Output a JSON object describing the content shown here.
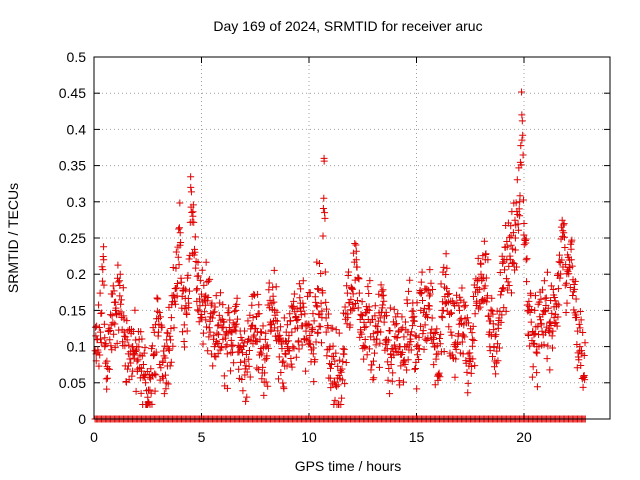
{
  "chart_data": {
    "type": "scatter",
    "title": "Day 169 of 2024, SRMTID for receiver aruc",
    "xlabel": "GPS time / hours",
    "ylabel": "SRMTID / TECUs",
    "xlim": [
      0,
      24
    ],
    "ylim": [
      0,
      0.5
    ],
    "xticks": [
      0,
      5,
      10,
      15,
      20
    ],
    "yticks": [
      0,
      0.05,
      0.1,
      0.15,
      0.2,
      0.25,
      0.3,
      0.35,
      0.4,
      0.45,
      0.5
    ],
    "xtick_labels": [
      "0",
      "5",
      "10",
      "15",
      "20"
    ],
    "ytick_labels": [
      "0",
      "0.05",
      "0.1",
      "0.15",
      "0.2",
      "0.25",
      "0.3",
      "0.35",
      "0.4",
      "0.45",
      "0.5"
    ],
    "grid": true,
    "marker": "+",
    "marker_color": "#e00000",
    "series": [
      {
        "name": "SRMTID",
        "x": [
          0.1,
          0.3,
          0.45,
          0.5,
          0.6,
          0.8,
          1.0,
          1.2,
          1.4,
          1.6,
          1.8,
          2.0,
          2.2,
          2.4,
          2.5,
          2.6,
          2.7,
          2.8,
          3.0,
          3.2,
          3.4,
          3.6,
          3.8,
          4.0,
          4.2,
          4.4,
          4.5,
          4.6,
          4.8,
          5.0,
          5.2,
          5.4,
          5.6,
          5.8,
          6.0,
          6.2,
          6.4,
          6.6,
          6.8,
          7.0,
          7.2,
          7.4,
          7.6,
          7.8,
          8.0,
          8.2,
          8.4,
          8.6,
          8.8,
          9.0,
          9.2,
          9.4,
          9.6,
          9.8,
          10.0,
          10.2,
          10.4,
          10.6,
          10.7,
          10.8,
          11.0,
          11.2,
          11.4,
          11.6,
          11.8,
          12.0,
          12.2,
          12.4,
          12.6,
          12.8,
          13.0,
          13.2,
          13.4,
          13.6,
          13.8,
          14.0,
          14.2,
          14.4,
          14.6,
          14.8,
          15.0,
          15.2,
          15.4,
          15.6,
          15.8,
          16.0,
          16.2,
          16.4,
          16.6,
          16.8,
          17.0,
          17.2,
          17.4,
          17.6,
          17.8,
          18.0,
          18.2,
          18.4,
          18.6,
          18.8,
          19.0,
          19.2,
          19.4,
          19.6,
          19.8,
          19.9,
          20.0,
          20.1,
          20.2,
          20.4,
          20.6,
          20.8,
          21.0,
          21.2,
          21.4,
          21.6,
          21.8,
          22.0,
          22.2,
          22.4,
          22.6,
          22.8
        ],
        "y": [
          0.09,
          0.12,
          0.22,
          0.1,
          0.08,
          0.13,
          0.15,
          0.17,
          0.12,
          0.09,
          0.1,
          0.08,
          0.07,
          0.05,
          0.03,
          0.04,
          0.06,
          0.09,
          0.12,
          0.08,
          0.1,
          0.14,
          0.18,
          0.24,
          0.13,
          0.16,
          0.32,
          0.28,
          0.18,
          0.14,
          0.17,
          0.12,
          0.1,
          0.13,
          0.11,
          0.09,
          0.12,
          0.15,
          0.1,
          0.08,
          0.11,
          0.14,
          0.12,
          0.09,
          0.1,
          0.13,
          0.15,
          0.11,
          0.08,
          0.1,
          0.12,
          0.14,
          0.16,
          0.11,
          0.13,
          0.09,
          0.18,
          0.14,
          0.36,
          0.12,
          0.07,
          0.08,
          0.06,
          0.09,
          0.14,
          0.18,
          0.22,
          0.12,
          0.1,
          0.15,
          0.08,
          0.12,
          0.17,
          0.11,
          0.09,
          0.13,
          0.1,
          0.08,
          0.12,
          0.14,
          0.1,
          0.15,
          0.13,
          0.17,
          0.11,
          0.09,
          0.14,
          0.18,
          0.12,
          0.1,
          0.15,
          0.13,
          0.09,
          0.11,
          0.16,
          0.2,
          0.22,
          0.12,
          0.1,
          0.13,
          0.18,
          0.22,
          0.24,
          0.25,
          0.3,
          0.42,
          0.27,
          0.22,
          0.15,
          0.12,
          0.1,
          0.13,
          0.15,
          0.12,
          0.14,
          0.18,
          0.26,
          0.16,
          0.22,
          0.14,
          0.1,
          0.06
        ]
      }
    ],
    "zero_band_note": "many points at 0 across 0 to 22.8 h"
  }
}
